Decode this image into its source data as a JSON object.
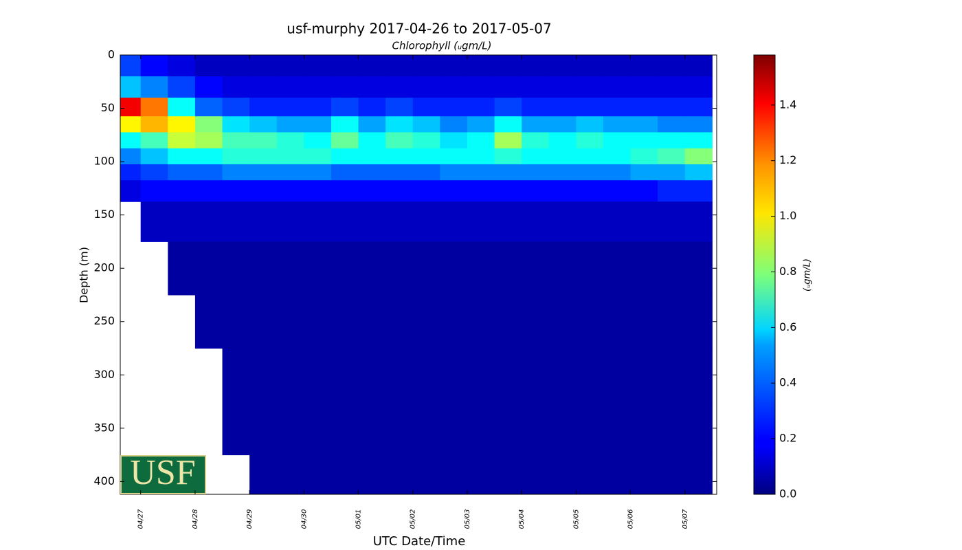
{
  "logo_text": "USF",
  "chart_data": {
    "type": "heatmap",
    "title": "usf-murphy 2017-04-26 to 2017-05-07",
    "subtitle": "Chlorophyll (ᵤgm/L)",
    "xlabel": "UTC Date/Time",
    "ylabel": "Depth (m)",
    "colorbar_label": "(ᵤgm/L)",
    "colormap": "jet",
    "invert_y": true,
    "xlim": [
      "2017-04-26T15:00:00Z",
      "2017-05-07T14:00:00Z"
    ],
    "xticks": [
      {
        "value": "2017-04-27T00:00:00Z",
        "label": "04/27"
      },
      {
        "value": "2017-04-28T00:00:00Z",
        "label": "04/28"
      },
      {
        "value": "2017-04-29T00:00:00Z",
        "label": "04/29"
      },
      {
        "value": "2017-04-30T00:00:00Z",
        "label": "04/30"
      },
      {
        "value": "2017-05-01T00:00:00Z",
        "label": "05/01"
      },
      {
        "value": "2017-05-02T00:00:00Z",
        "label": "05/02"
      },
      {
        "value": "2017-05-03T00:00:00Z",
        "label": "05/03"
      },
      {
        "value": "2017-05-04T00:00:00Z",
        "label": "05/04"
      },
      {
        "value": "2017-05-05T00:00:00Z",
        "label": "05/05"
      },
      {
        "value": "2017-05-06T00:00:00Z",
        "label": "05/06"
      },
      {
        "value": "2017-05-07T00:00:00Z",
        "label": "05/07"
      }
    ],
    "ylim": [
      0,
      412
    ],
    "yticks": [
      0,
      50,
      100,
      150,
      200,
      250,
      300,
      350,
      400
    ],
    "clim": [
      0,
      1.58
    ],
    "cticks": [
      {
        "value": 0,
        "label": "0.0"
      },
      {
        "value": 0.2,
        "label": "0.2"
      },
      {
        "value": 0.4,
        "label": "0.4"
      },
      {
        "value": 0.6,
        "label": "0.6"
      },
      {
        "value": 0.8,
        "label": "0.8"
      },
      {
        "value": 1,
        "label": "1.0"
      },
      {
        "value": 1.2,
        "label": "1.2"
      },
      {
        "value": 1.4,
        "label": "1.4"
      }
    ],
    "x": [
      "2017-04-26T18:00:00Z",
      "2017-04-27T06:00:00Z",
      "2017-04-27T18:00:00Z",
      "2017-04-28T06:00:00Z",
      "2017-04-28T18:00:00Z",
      "2017-04-29T06:00:00Z",
      "2017-04-29T18:00:00Z",
      "2017-04-30T06:00:00Z",
      "2017-04-30T18:00:00Z",
      "2017-05-01T06:00:00Z",
      "2017-05-01T18:00:00Z",
      "2017-05-02T06:00:00Z",
      "2017-05-02T18:00:00Z",
      "2017-05-03T06:00:00Z",
      "2017-05-03T18:00:00Z",
      "2017-05-04T06:00:00Z",
      "2017-05-04T18:00:00Z",
      "2017-05-05T06:00:00Z",
      "2017-05-05T18:00:00Z",
      "2017-05-06T06:00:00Z",
      "2017-05-06T18:00:00Z",
      "2017-05-07T06:00:00Z"
    ],
    "y": [
      10,
      30,
      50,
      65,
      80,
      95,
      110,
      125,
      150,
      200,
      250,
      300,
      350,
      400
    ],
    "z": [
      [
        0.3,
        0.5,
        1.4,
        1.0,
        0.6,
        0.4,
        0.25,
        0.15,
        null,
        null,
        null,
        null,
        null,
        null
      ],
      [
        0.2,
        0.4,
        1.2,
        1.1,
        0.7,
        0.5,
        0.3,
        0.2,
        0.1,
        null,
        null,
        null,
        null,
        null
      ],
      [
        0.15,
        0.3,
        0.6,
        1.0,
        0.9,
        0.6,
        0.35,
        0.2,
        0.1,
        0.05,
        null,
        null,
        null,
        null
      ],
      [
        0.1,
        0.2,
        0.35,
        0.8,
        0.85,
        0.6,
        0.35,
        0.2,
        0.1,
        0.05,
        0.05,
        null,
        null,
        null
      ],
      [
        0.1,
        0.15,
        0.3,
        0.55,
        0.7,
        0.65,
        0.4,
        0.2,
        0.1,
        0.05,
        0.05,
        0.05,
        0.05,
        null
      ],
      [
        0.1,
        0.15,
        0.25,
        0.5,
        0.7,
        0.65,
        0.4,
        0.2,
        0.1,
        0.05,
        0.05,
        0.05,
        0.05,
        0.05
      ],
      [
        0.1,
        0.15,
        0.25,
        0.45,
        0.65,
        0.65,
        0.4,
        0.2,
        0.1,
        0.05,
        0.05,
        0.05,
        0.05,
        0.05
      ],
      [
        0.1,
        0.15,
        0.25,
        0.45,
        0.6,
        0.65,
        0.4,
        0.2,
        0.1,
        0.05,
        0.05,
        0.05,
        0.05,
        0.05
      ],
      [
        0.1,
        0.15,
        0.3,
        0.6,
        0.75,
        0.6,
        0.35,
        0.2,
        0.1,
        0.05,
        0.05,
        0.05,
        0.05,
        0.05
      ],
      [
        0.1,
        0.15,
        0.25,
        0.45,
        0.6,
        0.6,
        0.35,
        0.2,
        0.1,
        0.05,
        0.05,
        0.05,
        0.05,
        0.05
      ],
      [
        0.1,
        0.15,
        0.3,
        0.55,
        0.7,
        0.6,
        0.35,
        0.2,
        0.1,
        0.05,
        0.05,
        0.05,
        0.05,
        0.05
      ],
      [
        0.1,
        0.15,
        0.25,
        0.5,
        0.65,
        0.6,
        0.35,
        0.2,
        0.1,
        0.05,
        0.05,
        0.05,
        0.05,
        0.05
      ],
      [
        0.1,
        0.15,
        0.25,
        0.4,
        0.55,
        0.6,
        0.4,
        0.2,
        0.1,
        0.05,
        0.05,
        0.05,
        0.05,
        0.05
      ],
      [
        0.1,
        0.15,
        0.25,
        0.45,
        0.6,
        0.6,
        0.4,
        0.2,
        0.1,
        0.05,
        0.05,
        0.05,
        0.05,
        0.05
      ],
      [
        0.1,
        0.15,
        0.3,
        0.6,
        0.85,
        0.65,
        0.4,
        0.2,
        0.1,
        0.05,
        0.05,
        0.05,
        0.05,
        0.05
      ],
      [
        0.1,
        0.15,
        0.25,
        0.45,
        0.65,
        0.6,
        0.4,
        0.2,
        0.1,
        0.05,
        0.05,
        0.05,
        0.05,
        0.05
      ],
      [
        0.1,
        0.15,
        0.25,
        0.45,
        0.6,
        0.6,
        0.4,
        0.2,
        0.1,
        0.05,
        0.05,
        0.05,
        0.05,
        0.05
      ],
      [
        0.1,
        0.15,
        0.25,
        0.5,
        0.65,
        0.6,
        0.4,
        0.2,
        0.1,
        0.05,
        0.05,
        0.05,
        0.05,
        0.05
      ],
      [
        0.1,
        0.15,
        0.25,
        0.45,
        0.6,
        0.6,
        0.4,
        0.2,
        0.1,
        0.05,
        0.05,
        0.05,
        0.05,
        0.05
      ],
      [
        0.1,
        0.15,
        0.25,
        0.45,
        0.6,
        0.65,
        0.45,
        0.2,
        0.1,
        0.05,
        0.05,
        0.05,
        0.05,
        0.05
      ],
      [
        0.1,
        0.15,
        0.25,
        0.4,
        0.6,
        0.7,
        0.45,
        0.25,
        0.1,
        0.05,
        0.05,
        0.05,
        0.05,
        0.05
      ],
      [
        0.1,
        0.15,
        0.25,
        0.4,
        0.6,
        0.8,
        0.5,
        0.25,
        0.1,
        0.05,
        0.05,
        0.05,
        0.05,
        0.05
      ]
    ]
  }
}
